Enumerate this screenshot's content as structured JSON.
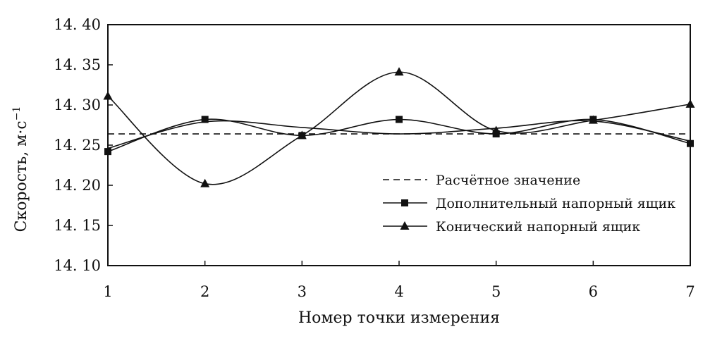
{
  "chart_data": {
    "type": "line",
    "title": "",
    "xlabel": "Номер точки измерения",
    "ylabel_main": "Скорость, м·с",
    "ylabel_sup": "−1",
    "x": [
      1,
      2,
      3,
      4,
      5,
      6,
      7
    ],
    "x_ticks": [
      "1",
      "2",
      "3",
      "4",
      "5",
      "6",
      "7"
    ],
    "xlim": [
      1,
      7
    ],
    "ylim": [
      14.1,
      14.4
    ],
    "y_ticks": [
      {
        "value": 14.1,
        "label": "14. 10"
      },
      {
        "value": 14.15,
        "label": "14. 15"
      },
      {
        "value": 14.2,
        "label": "14. 20"
      },
      {
        "value": 14.25,
        "label": "14. 25"
      },
      {
        "value": 14.3,
        "label": "14. 30"
      },
      {
        "value": 14.35,
        "label": "14. 35"
      },
      {
        "value": 14.4,
        "label": "14. 40"
      }
    ],
    "grid": false,
    "legend_position": "lower-right",
    "series": [
      {
        "name": "Расчётное значение",
        "style": "dashed",
        "marker": "none",
        "values": [
          14.264,
          14.264,
          14.264,
          14.264,
          14.264,
          14.264,
          14.264
        ]
      },
      {
        "name": "Дополнительный напорный ящик",
        "style": "solid",
        "marker": "square",
        "values": [
          14.242,
          14.282,
          14.262,
          14.282,
          14.264,
          14.282,
          14.252
        ]
      },
      {
        "name": "Конический напорный ящик",
        "style": "solid",
        "marker": "triangle",
        "values": [
          14.311,
          14.202,
          14.262,
          14.341,
          14.268,
          14.281,
          14.301
        ]
      }
    ],
    "trend_line": {
      "marker": "none",
      "style": "solid",
      "values": [
        14.246,
        14.279,
        14.272,
        14.264,
        14.271,
        14.28,
        14.255
      ]
    },
    "colors": {
      "line": "#111111",
      "background": "#ffffff"
    }
  }
}
